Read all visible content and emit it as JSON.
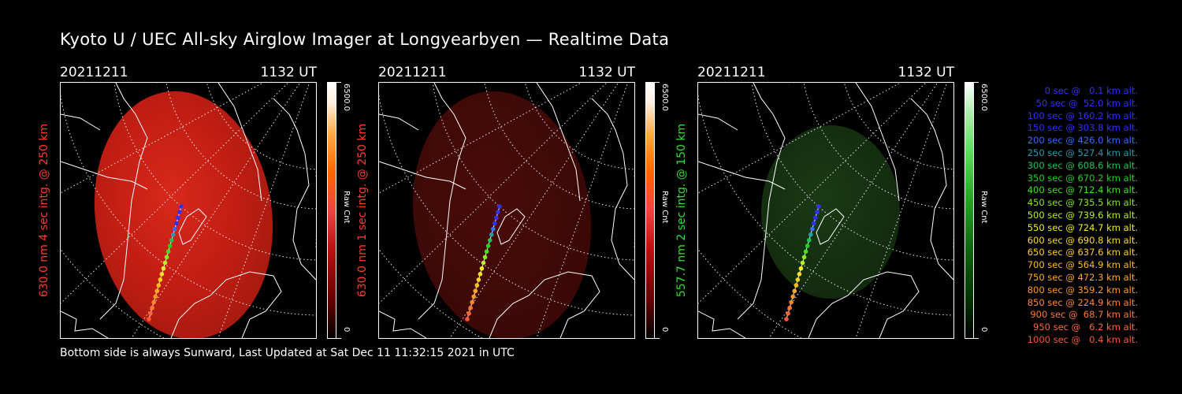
{
  "title": "Kyoto U / UEC All-sky Airglow Imager at Longyearbyen — Realtime Data",
  "footer": "Bottom side is always Sunward, Last Updated at Sat Dec 11 11:32:15 2021 in UTC",
  "panels": [
    {
      "date": "20211211",
      "time": "1132 UT",
      "ylabel": "630.0 nm 4 sec intg. @ 250 km",
      "cb_max": "6500.0",
      "cb_min": "0",
      "cb_unit": "Raw Cnt",
      "color": "#ff3b2a",
      "colormap": "red",
      "intensity": "bright"
    },
    {
      "date": "20211211",
      "time": "1132 UT",
      "ylabel": "630.0 nm 1 sec intg. @ 250 km",
      "cb_max": "6500.0",
      "cb_min": "0",
      "cb_unit": "Raw Cnt",
      "color": "#ff3b2a",
      "colormap": "red",
      "intensity": "dim"
    },
    {
      "date": "20211211",
      "time": "1132 UT",
      "ylabel": "557.7 nm 2 sec intg. @ 150 km",
      "cb_max": "6500.0",
      "cb_min": "0",
      "cb_unit": "Raw Cnt",
      "color": "#33dd33",
      "colormap": "green",
      "intensity": "dim"
    }
  ],
  "legend": [
    {
      "text": "0 sec @   0.1 km alt.",
      "color": "#3030ff"
    },
    {
      "text": "50 sec @  52.0 km alt.",
      "color": "#3030ff"
    },
    {
      "text": "100 sec @ 160.2 km alt.",
      "color": "#3030ff"
    },
    {
      "text": "150 sec @ 303.8 km alt.",
      "color": "#3030ff"
    },
    {
      "text": "200 sec @ 426.0 km alt.",
      "color": "#3a6aff"
    },
    {
      "text": "250 sec @ 527.4 km alt.",
      "color": "#2a9aaa"
    },
    {
      "text": "300 sec @ 608.6 km alt.",
      "color": "#22c055"
    },
    {
      "text": "350 sec @ 670.2 km alt.",
      "color": "#22d022"
    },
    {
      "text": "400 sec @ 712.4 km alt.",
      "color": "#44e022"
    },
    {
      "text": "450 sec @ 735.5 km alt.",
      "color": "#88e822"
    },
    {
      "text": "500 sec @ 739.6 km alt.",
      "color": "#bbf022"
    },
    {
      "text": "550 sec @ 724.7 km alt.",
      "color": "#eeee22"
    },
    {
      "text": "600 sec @ 690.8 km alt.",
      "color": "#ffdd22"
    },
    {
      "text": "650 sec @ 637.6 km alt.",
      "color": "#ffcc22"
    },
    {
      "text": "700 sec @ 564.9 km alt.",
      "color": "#ffbb22"
    },
    {
      "text": "750 sec @ 472.3 km alt.",
      "color": "#ffaa22"
    },
    {
      "text": "800 sec @ 359.2 km alt.",
      "color": "#ff9922"
    },
    {
      "text": "850 sec @ 224.9 km alt.",
      "color": "#ff8833"
    },
    {
      "text": "900 sec @  68.7 km alt.",
      "color": "#ff7733"
    },
    {
      "text": "950 sec @   6.2 km alt.",
      "color": "#ff6633"
    },
    {
      "text": "1000 sec @   0.4 km alt.",
      "color": "#ff5533"
    }
  ]
}
